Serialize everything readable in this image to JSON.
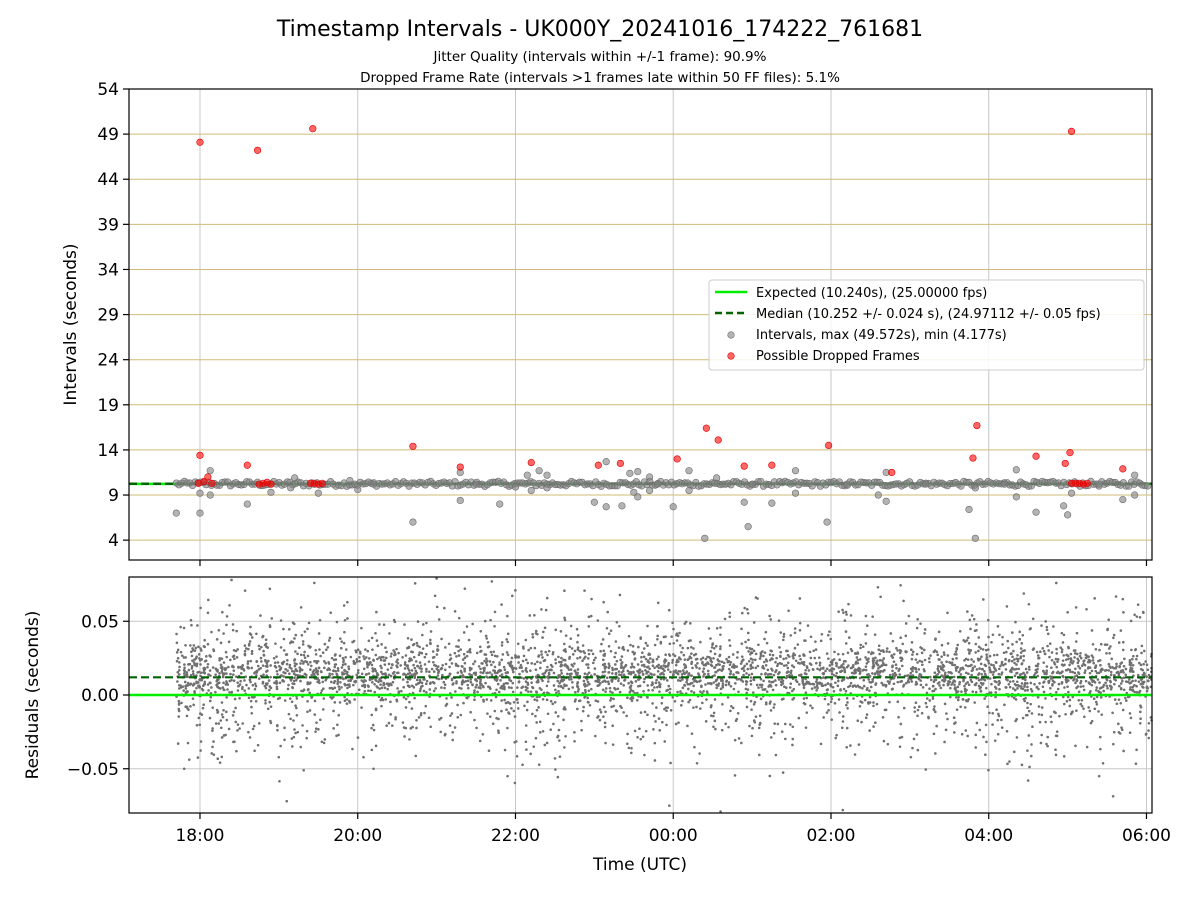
{
  "chart_data": [
    {
      "type": "scatter",
      "title": "Timestamp Intervals - UK000Y_20241016_174222_761681",
      "subtitle_lines": [
        "Jitter Quality (intervals within +/-1 frame): 90.9%",
        "Dropped Frame Rate (intervals >1 frames late within 50 FF files): 5.1%"
      ],
      "xlabel": "",
      "ylabel": "Intervals (seconds)",
      "x_unit": "hours since 00:00 UTC (negative = previous day)",
      "xlim": [
        -6.9,
        6.07
      ],
      "ylim": [
        1.8,
        54
      ],
      "yticks": [
        4,
        9,
        14,
        19,
        24,
        29,
        34,
        39,
        44,
        49,
        54
      ],
      "xticks": [
        -6,
        -4,
        -2,
        0,
        2,
        4,
        6
      ],
      "xtick_labels": [
        "18:00",
        "20:00",
        "22:00",
        "00:00",
        "02:00",
        "04:00",
        "06:00"
      ],
      "grid": true,
      "legend_position": "center-right",
      "colors": {
        "expected": "#00ee00",
        "median": "#006400",
        "intervals": "#808080",
        "dropped": "#ff0000",
        "hgrid": "#d2bb76",
        "vgrid": "#c8c8c8"
      },
      "lines": [
        {
          "name": "Expected (10.240s), (25.00000 fps)",
          "y": 10.24,
          "style": "solid"
        },
        {
          "name": "Median (10.252 +/- 0.024 s), (24.97112 +/- 0.05 fps)",
          "y": 10.252,
          "style": "dashed"
        }
      ],
      "series": [
        {
          "name": "Intervals, max (49.572s), min (4.177s)",
          "marker": "circle",
          "points": [
            [
              -6.3,
              7.0
            ],
            [
              -6.0,
              7.0
            ],
            [
              -6.0,
              9.2
            ],
            [
              -5.87,
              9.0
            ],
            [
              -5.87,
              11.7
            ],
            [
              -5.4,
              8.0
            ],
            [
              -5.1,
              9.3
            ],
            [
              -4.85,
              9.8
            ],
            [
              -4.8,
              10.9
            ],
            [
              -4.5,
              9.2
            ],
            [
              -4.0,
              9.6
            ],
            [
              -4.1,
              10.6
            ],
            [
              -3.3,
              6.0
            ],
            [
              -2.7,
              8.4
            ],
            [
              -2.7,
              11.5
            ],
            [
              -2.2,
              8.0
            ],
            [
              -2.0,
              9.9
            ],
            [
              -1.85,
              11.2
            ],
            [
              -1.8,
              9.5
            ],
            [
              -1.7,
              11.7
            ],
            [
              -1.6,
              11.2
            ],
            [
              -1.6,
              9.8
            ],
            [
              -1.0,
              8.2
            ],
            [
              -0.85,
              12.7
            ],
            [
              -0.85,
              7.7
            ],
            [
              -0.65,
              7.8
            ],
            [
              -0.55,
              11.4
            ],
            [
              -0.5,
              9.3
            ],
            [
              -0.45,
              11.6
            ],
            [
              -0.45,
              8.8
            ],
            [
              -0.3,
              11.0
            ],
            [
              -0.3,
              9.5
            ],
            [
              0.0,
              7.7
            ],
            [
              0.2,
              9.5
            ],
            [
              0.2,
              11.7
            ],
            [
              0.4,
              4.2
            ],
            [
              0.55,
              10.9
            ],
            [
              0.9,
              8.2
            ],
            [
              0.95,
              5.5
            ],
            [
              1.25,
              8.1
            ],
            [
              1.55,
              9.2
            ],
            [
              1.55,
              11.7
            ],
            [
              1.95,
              6.0
            ],
            [
              2.6,
              9.0
            ],
            [
              2.7,
              8.3
            ],
            [
              2.7,
              11.5
            ],
            [
              3.75,
              7.4
            ],
            [
              3.83,
              4.2
            ],
            [
              3.83,
              9.8
            ],
            [
              4.35,
              8.8
            ],
            [
              4.35,
              11.8
            ],
            [
              4.6,
              7.1
            ],
            [
              4.95,
              7.8
            ],
            [
              5.0,
              6.8
            ],
            [
              5.05,
              9.2
            ],
            [
              5.7,
              8.5
            ],
            [
              5.85,
              9.0
            ],
            [
              5.85,
              11.2
            ],
            [
              -0.2,
              10.2
            ],
            [
              1.0,
              10.2
            ],
            [
              2.2,
              10.2
            ],
            [
              3.2,
              10.2
            ],
            [
              4.2,
              10.2
            ],
            [
              5.4,
              10.2
            ],
            [
              -2.5,
              10.2
            ],
            [
              -3.8,
              10.2
            ]
          ]
        },
        {
          "name": "Possible Dropped Frames",
          "marker": "circle",
          "points": [
            [
              -6.0,
              48.1
            ],
            [
              -5.27,
              47.2
            ],
            [
              -4.57,
              49.6
            ],
            [
              5.05,
              49.3
            ],
            [
              -6.0,
              13.4
            ],
            [
              -5.4,
              12.3
            ],
            [
              -3.3,
              14.4
            ],
            [
              -2.7,
              12.1
            ],
            [
              -1.8,
              12.6
            ],
            [
              -0.95,
              12.3
            ],
            [
              -0.67,
              12.5
            ],
            [
              0.05,
              13.0
            ],
            [
              0.42,
              16.4
            ],
            [
              0.57,
              15.1
            ],
            [
              0.9,
              12.2
            ],
            [
              1.25,
              12.3
            ],
            [
              1.97,
              14.5
            ],
            [
              2.77,
              11.5
            ],
            [
              3.8,
              13.1
            ],
            [
              3.85,
              16.7
            ],
            [
              4.6,
              13.3
            ],
            [
              4.97,
              12.5
            ],
            [
              5.03,
              13.7
            ],
            [
              5.7,
              11.9
            ],
            [
              -5.9,
              11.0
            ],
            [
              -5.95,
              10.5
            ],
            [
              -6.02,
              10.3
            ],
            [
              -5.85,
              10.3
            ],
            [
              -5.2,
              10.3
            ],
            [
              -5.25,
              10.2
            ],
            [
              -5.1,
              10.2
            ],
            [
              -5.15,
              10.4
            ],
            [
              -4.55,
              10.3
            ],
            [
              -4.5,
              10.2
            ],
            [
              -4.45,
              10.3
            ],
            [
              -4.6,
              10.3
            ],
            [
              5.1,
              10.3
            ],
            [
              5.15,
              10.3
            ],
            [
              5.2,
              10.2
            ],
            [
              5.05,
              10.3
            ],
            [
              5.25,
              10.3
            ]
          ]
        }
      ]
    },
    {
      "type": "scatter",
      "title": "",
      "xlabel": "Time (UTC)",
      "ylabel": "Residuals (seconds)",
      "xlim": [
        -6.9,
        6.07
      ],
      "ylim": [
        -0.08,
        0.08
      ],
      "yticks": [
        -0.05,
        0.0,
        0.05
      ],
      "ytick_labels": [
        "−0.05",
        "0.00",
        "0.05"
      ],
      "xticks": [
        -6,
        -4,
        -2,
        0,
        2,
        4,
        6
      ],
      "xtick_labels": [
        "18:00",
        "20:00",
        "22:00",
        "00:00",
        "02:00",
        "04:00",
        "06:00"
      ],
      "grid": true,
      "lines": [
        {
          "name": "Expected",
          "y": 0.0,
          "style": "solid"
        },
        {
          "name": "Median",
          "y": 0.012,
          "style": "dashed"
        }
      ],
      "series": [
        {
          "name": "Residuals",
          "x_range": [
            -6.3,
            6.07
          ],
          "point_count": 4300,
          "center": 0.015,
          "typical_spread": 0.02,
          "extremes": [
            [
              -5.6,
              0.078
            ],
            [
              -3.0,
              0.079
            ],
            [
              -4.55,
              0.076
            ],
            [
              -2.3,
              0.077
            ],
            [
              5.7,
              0.065
            ],
            [
              -4.9,
              -0.072
            ],
            [
              -0.05,
              -0.075
            ],
            [
              0.6,
              -0.079
            ],
            [
              2.15,
              -0.078
            ],
            [
              4.5,
              -0.058
            ],
            [
              5.4,
              -0.055
            ],
            [
              -6.2,
              -0.05
            ],
            [
              -3.8,
              -0.05
            ],
            [
              -2.1,
              -0.055
            ]
          ]
        }
      ]
    }
  ]
}
